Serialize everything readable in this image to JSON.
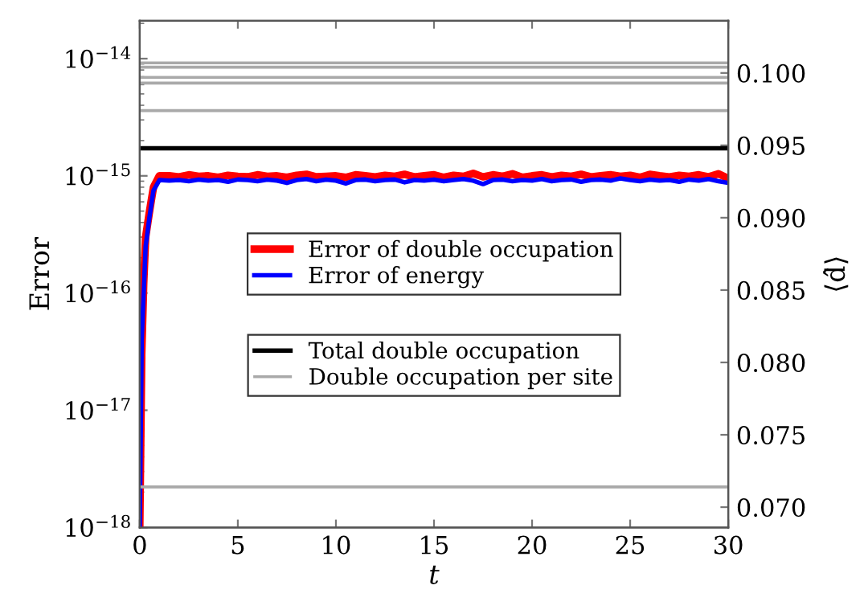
{
  "chart_data": {
    "type": "line",
    "xlabel": "t",
    "ylabel": "Error",
    "y2label": "⟨d̂⟩",
    "log": "y",
    "grid": false,
    "legend": "center",
    "marker": "none",
    "line_style": "solid",
    "xlim": [
      0,
      30
    ],
    "xticks": [
      0,
      5,
      10,
      15,
      20,
      25,
      30
    ],
    "ylim": [
      1e-18,
      2.1e-14
    ],
    "yticks": [
      {
        "value": 1e-18,
        "label": "10$^{−18}$"
      },
      {
        "value": 1e-17,
        "label": "10$^{−17}$"
      },
      {
        "value": 1e-16,
        "label": "10$^{−16}$"
      },
      {
        "value": 1e-15,
        "label": "10$^{−15}$"
      },
      {
        "value": 1e-14,
        "label": "10$^{−14}$"
      }
    ],
    "y2lim": [
      0.0686,
      0.1036
    ],
    "y2ticks": [
      {
        "value": 0.07,
        "label": "0.070"
      },
      0.075,
      {
        "value": 0.08,
        "label": "0.080"
      },
      0.085,
      {
        "value": 0.09,
        "label": "0.090"
      },
      0.095,
      {
        "value": 0.1,
        "label": "0.100"
      }
    ],
    "series": [
      {
        "name": "Error of double occupation",
        "color": "#ff0000",
        "x": [
          0,
          0.1,
          0.2,
          0.3,
          0.5,
          0.7,
          1.0,
          1.5,
          2,
          2.5,
          3,
          3.5,
          4,
          4.5,
          5,
          5.5,
          6,
          6.5,
          7,
          7.5,
          8,
          8.5,
          9,
          9.5,
          10,
          10.5,
          11,
          11.5,
          12,
          12.5,
          13,
          13.5,
          14,
          14.5,
          15,
          15.5,
          16,
          16.5,
          17,
          17.5,
          18,
          18.5,
          19,
          19.5,
          20,
          20.5,
          21,
          21.5,
          22,
          22.5,
          23,
          23.5,
          24,
          24.5,
          25,
          25.5,
          26,
          26.5,
          27,
          27.5,
          28,
          28.5,
          29,
          29.5,
          30
        ],
        "values": [
          1e-18,
          3e-17,
          1.2e-16,
          3e-16,
          5e-16,
          8e-16,
          1e-15,
          1e-15,
          9.8e-16,
          1.02e-15,
          9.9e-16,
          1e-15,
          9.7e-16,
          1.01e-15,
          9.9e-16,
          9.8e-16,
          1.02e-15,
          9.9e-16,
          1e-15,
          9.7e-16,
          1.01e-15,
          1.03e-15,
          9.8e-16,
          9.9e-16,
          1e-15,
          9.7e-16,
          1.02e-15,
          1e-15,
          9.8e-16,
          1.01e-15,
          9.9e-16,
          1.03e-15,
          9.8e-16,
          1e-15,
          1.02e-15,
          9.7e-16,
          1.01e-15,
          9.9e-16,
          1.05e-15,
          9.8e-16,
          1.02e-15,
          9.9e-16,
          1.04e-15,
          9.7e-16,
          1e-15,
          1.02e-15,
          9.8e-16,
          1.01e-15,
          9.9e-16,
          1.03e-15,
          9.8e-16,
          1e-15,
          1.02e-15,
          9.9e-16,
          1.01e-15,
          9.7e-16,
          1.03e-15,
          1e-15,
          9.8e-16,
          1.01e-15,
          9.9e-16,
          1.02e-15,
          9.8e-16,
          1.04e-15,
          9.5e-16
        ]
      },
      {
        "name": "Error of energy",
        "color": "#0000ff",
        "x": [
          0,
          0.1,
          0.2,
          0.3,
          0.5,
          0.7,
          1.0,
          1.5,
          2,
          2.5,
          3,
          3.5,
          4,
          4.5,
          5,
          5.5,
          6,
          6.5,
          7,
          7.5,
          8,
          8.5,
          9,
          9.5,
          10,
          10.5,
          11,
          11.5,
          12,
          12.5,
          13,
          13.5,
          14,
          14.5,
          15,
          15.5,
          16,
          16.5,
          17,
          17.5,
          18,
          18.5,
          19,
          19.5,
          20,
          20.5,
          21,
          21.5,
          22,
          22.5,
          23,
          23.5,
          24,
          24.5,
          25,
          25.5,
          26,
          26.5,
          27,
          27.5,
          28,
          28.5,
          29,
          29.5,
          30
        ],
        "values": [
          1e-18,
          4e-17,
          1e-16,
          2.5e-16,
          4.5e-16,
          7.5e-16,
          9.2e-16,
          9.1e-16,
          9.2e-16,
          9e-16,
          9.3e-16,
          9.1e-16,
          9.2e-16,
          8.9e-16,
          9.3e-16,
          9.2e-16,
          9e-16,
          9.3e-16,
          9.1e-16,
          8.7e-16,
          9.2e-16,
          9.4e-16,
          9e-16,
          9.3e-16,
          9.1e-16,
          8.6e-16,
          9.2e-16,
          9.3e-16,
          9e-16,
          9.2e-16,
          9.3e-16,
          8.8e-16,
          9.2e-16,
          9.1e-16,
          9.3e-16,
          9e-16,
          9.2e-16,
          9.4e-16,
          9.1e-16,
          8.5e-16,
          9.2e-16,
          9.3e-16,
          9e-16,
          9.2e-16,
          9.1e-16,
          9.4e-16,
          9e-16,
          9.2e-16,
          9.3e-16,
          8.9e-16,
          9.2e-16,
          9.3e-16,
          9.1e-16,
          9.5e-16,
          9.2e-16,
          9e-16,
          9.3e-16,
          9.1e-16,
          9.2e-16,
          8.9e-16,
          9.3e-16,
          9.1e-16,
          9.4e-16,
          9e-16,
          8.7e-16
        ]
      },
      {
        "name": "Total double occupation",
        "color": "#000000",
        "axis": "y2",
        "x": [
          0,
          30
        ],
        "values": [
          0.0948,
          0.0948
        ]
      },
      {
        "name": "Double occupation per site",
        "color": "#a9a9a9",
        "axis": "y2",
        "x": [
          0,
          30
        ],
        "values": [
          0.1007,
          0.1007
        ]
      },
      {
        "color": "#a9a9a9",
        "axis": "y2",
        "x": [
          0,
          30
        ],
        "values": [
          0.1004,
          0.1004
        ]
      },
      {
        "color": "#a9a9a9",
        "axis": "y2",
        "x": [
          0,
          30
        ],
        "values": [
          0.0997,
          0.0997
        ]
      },
      {
        "color": "#a9a9a9",
        "axis": "y2",
        "x": [
          0,
          30
        ],
        "values": [
          0.0993,
          0.0993
        ]
      },
      {
        "color": "#a9a9a9",
        "axis": "y2",
        "x": [
          0,
          30
        ],
        "values": [
          0.0974,
          0.0974
        ]
      },
      {
        "color": "#a9a9a9",
        "axis": "y2",
        "x": [
          0,
          30
        ],
        "values": [
          0.0714,
          0.0714
        ]
      }
    ]
  }
}
